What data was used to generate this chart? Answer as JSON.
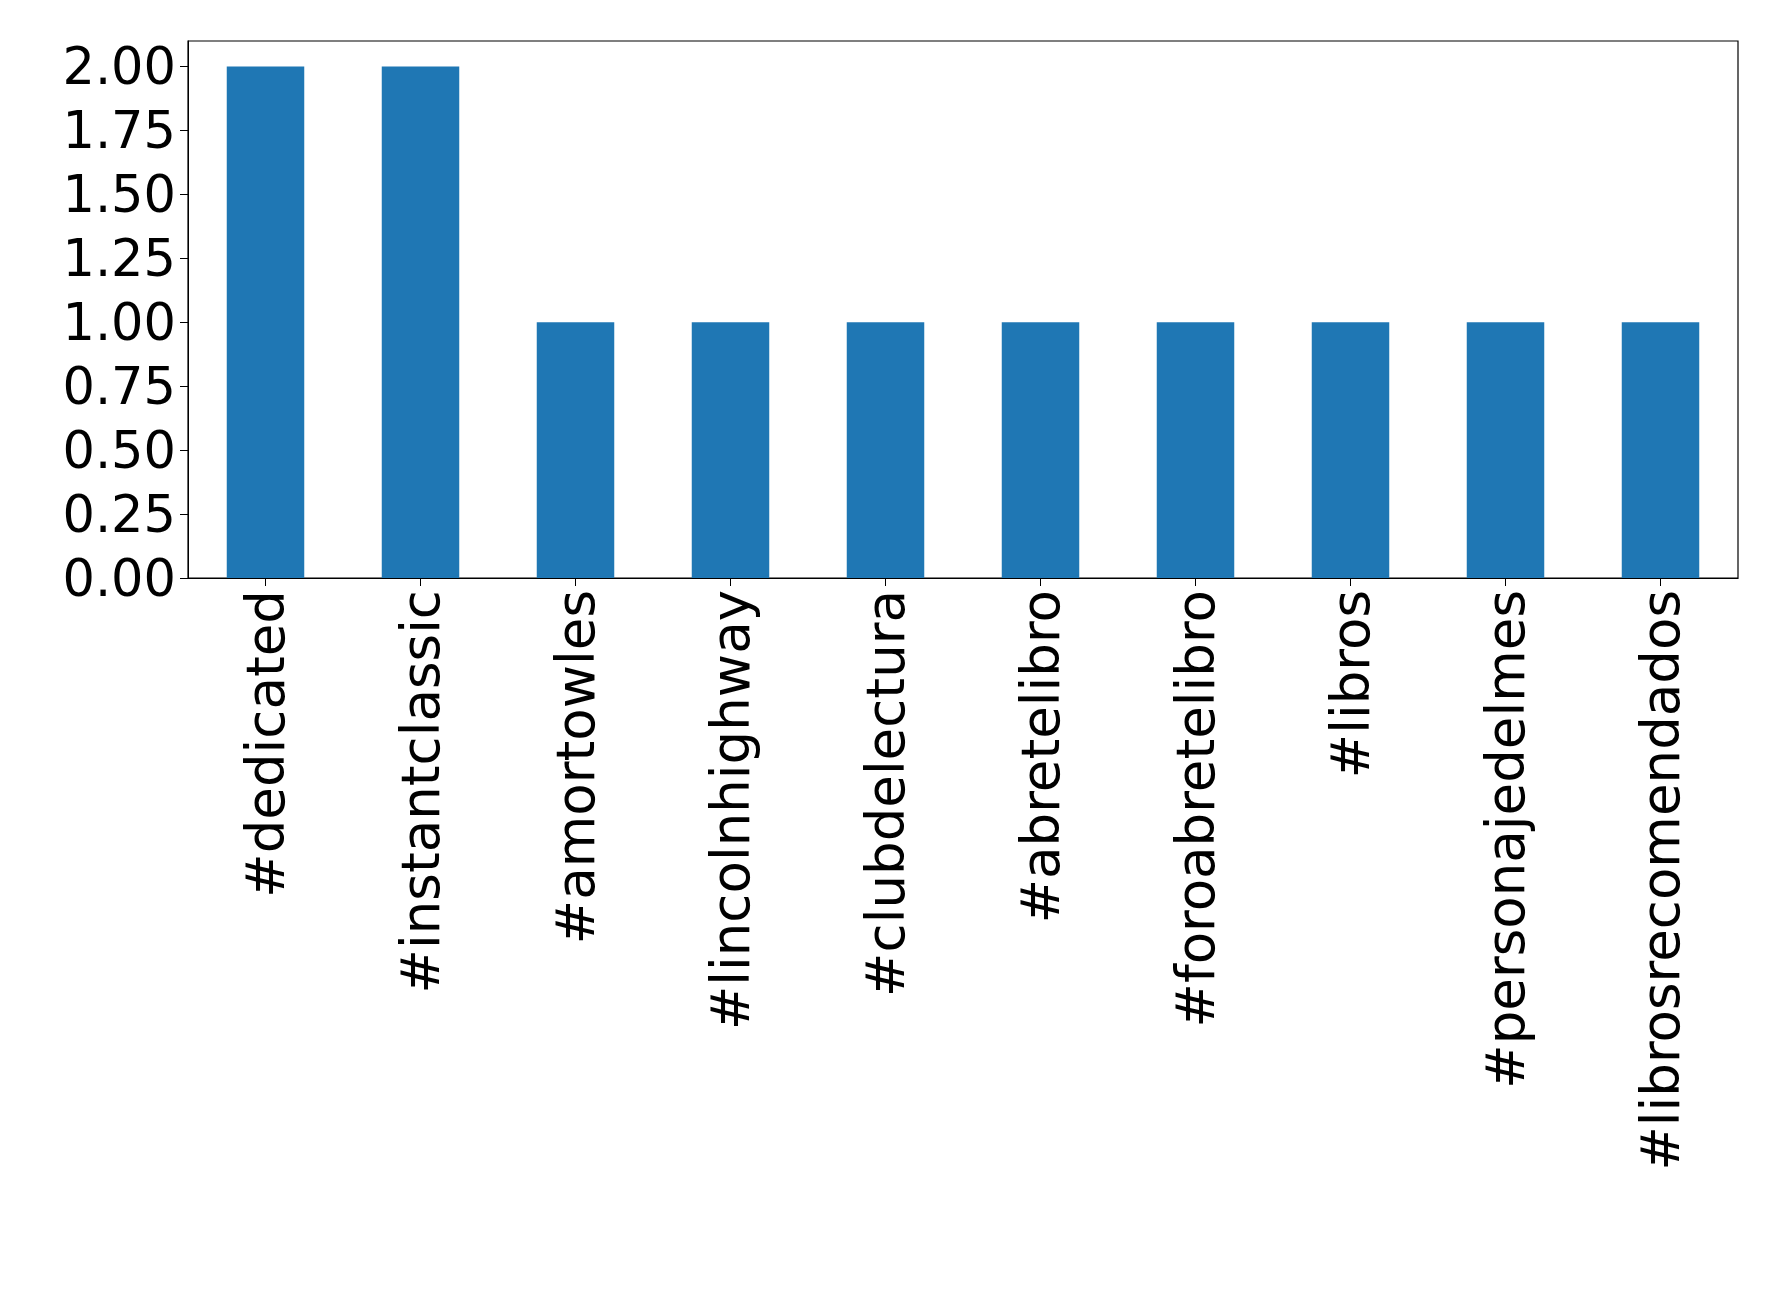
{
  "chart_data": {
    "type": "bar",
    "categories": [
      "#dedicated",
      "#instantclassic",
      "#amortowles",
      "#lincolnhighway",
      "#clubdelectura",
      "#abretelibro",
      "#foroabretelibro",
      "#libros",
      "#personajedelmes",
      "#librosrecomendados"
    ],
    "values": [
      2,
      2,
      1,
      1,
      1,
      1,
      1,
      1,
      1,
      1
    ],
    "color": "#1f77b4",
    "ylim": [
      0,
      2.1
    ],
    "yticks": [
      {
        "value": 0,
        "label": "0.00"
      },
      {
        "value": 0.25,
        "label": "0.25"
      },
      {
        "value": 0.5,
        "label": "0.50"
      },
      {
        "value": 0.75,
        "label": "0.75"
      },
      {
        "value": 1,
        "label": "1.00"
      },
      {
        "value": 1.25,
        "label": "1.25"
      },
      {
        "value": 1.5,
        "label": "1.50"
      },
      {
        "value": 1.75,
        "label": "1.75"
      },
      {
        "value": 2,
        "label": "2.00"
      }
    ],
    "grid": false
  }
}
